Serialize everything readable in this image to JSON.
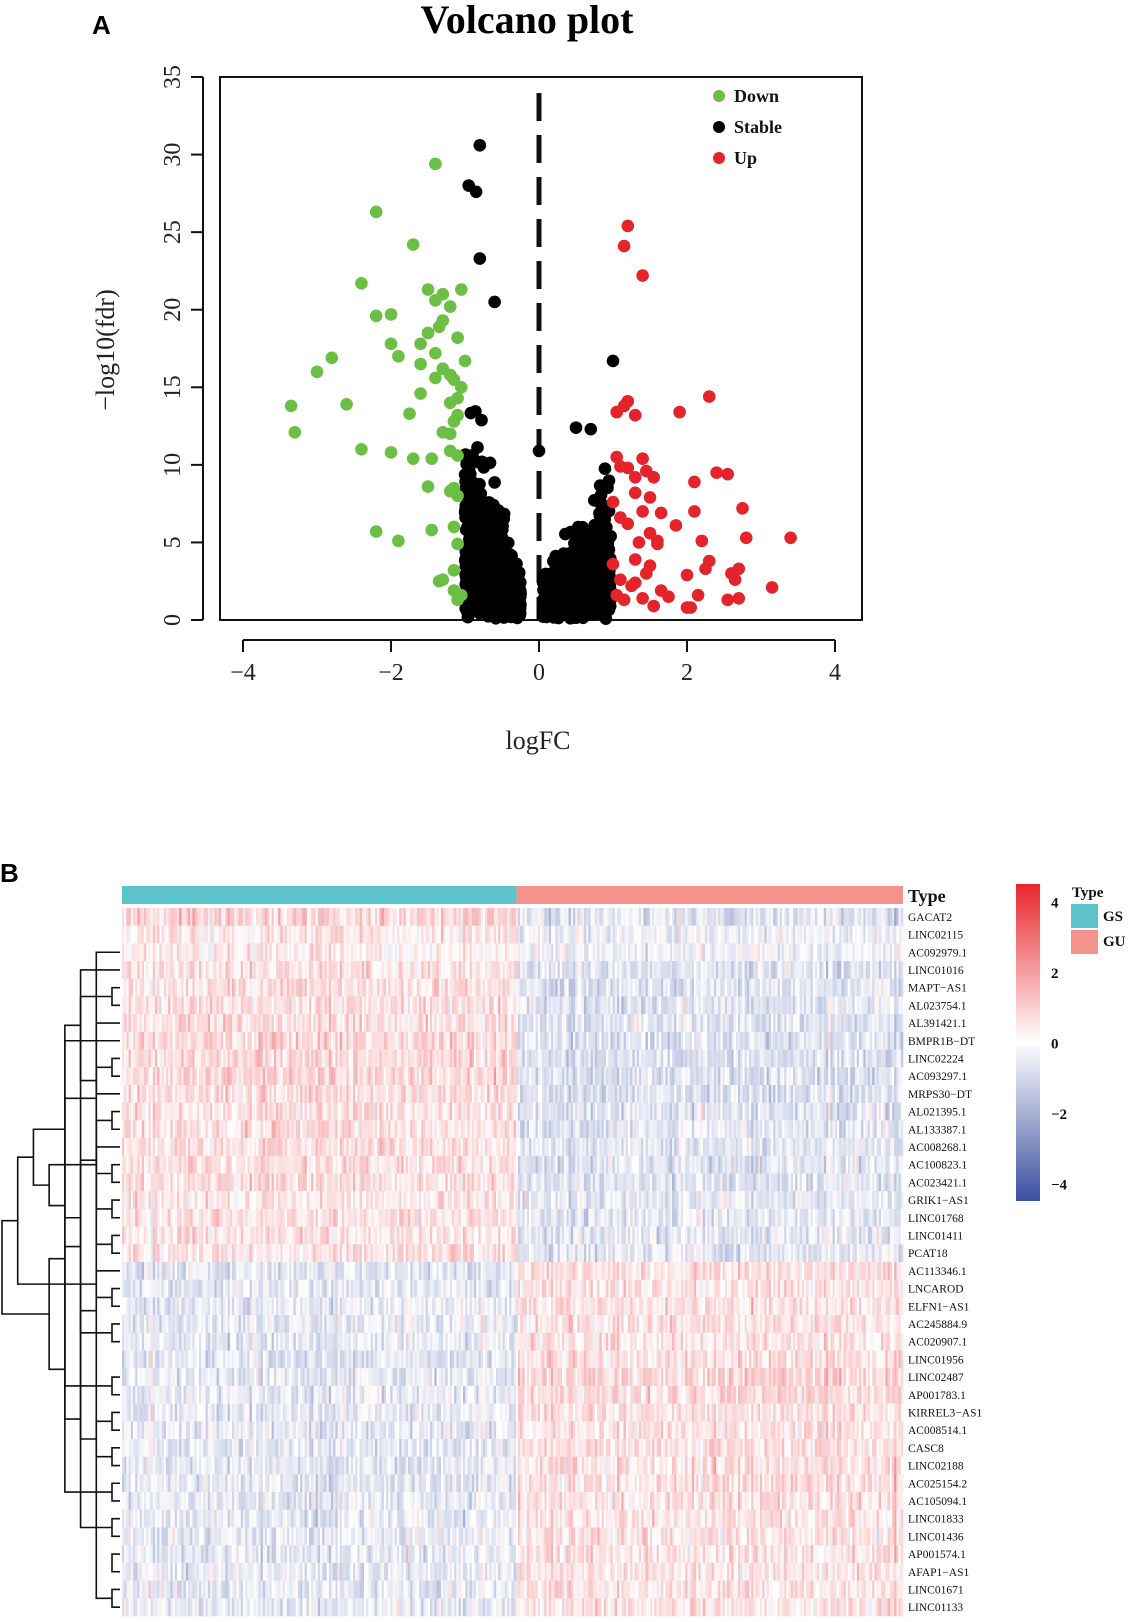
{
  "chart_data": [
    {
      "type": "scatter",
      "panel": "A",
      "title": "Volcano plot",
      "xlabel": "logFC",
      "ylabel": "−log10(fdr)",
      "xlim": [
        -4,
        4
      ],
      "ylim": [
        0,
        35
      ],
      "xticks": [
        "−4",
        "−2",
        "0",
        "2",
        "4"
      ],
      "yticks": [
        "0",
        "5",
        "10",
        "15",
        "20",
        "25",
        "30",
        "35"
      ],
      "threshold_x": 0,
      "legend": [
        "Down",
        "Stable",
        "Up"
      ],
      "colors": {
        "Down": "#6cbf45",
        "Stable": "#000000",
        "Up": "#e4232a"
      },
      "series": [
        {
          "name": "Down",
          "points": [
            [
              -1.4,
              29.4
            ],
            [
              -2.2,
              26.3
            ],
            [
              -1.7,
              24.2
            ],
            [
              -2.4,
              21.7
            ],
            [
              -1.5,
              21.3
            ],
            [
              -1.05,
              21.3
            ],
            [
              -1.3,
              21
            ],
            [
              -1.4,
              20.6
            ],
            [
              -1.2,
              20.2
            ],
            [
              -2.2,
              19.6
            ],
            [
              -2.0,
              19.7
            ],
            [
              -1.3,
              19.3
            ],
            [
              -1.5,
              18.5
            ],
            [
              -1.35,
              18.9
            ],
            [
              -1.1,
              18.2
            ],
            [
              -2.0,
              17.8
            ],
            [
              -1.6,
              17.8
            ],
            [
              -1.4,
              17.2
            ],
            [
              -1.9,
              17.0
            ],
            [
              -2.8,
              16.9
            ],
            [
              -1.0,
              16.7
            ],
            [
              -1.6,
              16.5
            ],
            [
              -3.0,
              16.0
            ],
            [
              -1.3,
              16.2
            ],
            [
              -1.2,
              15.8
            ],
            [
              -1.4,
              15.6
            ],
            [
              -1.15,
              15.5
            ],
            [
              -1.05,
              15.0
            ],
            [
              -1.6,
              14.6
            ],
            [
              -1.1,
              14.3
            ],
            [
              -1.2,
              14.0
            ],
            [
              -2.6,
              13.9
            ],
            [
              -3.35,
              13.8
            ],
            [
              -1.75,
              13.3
            ],
            [
              -1.1,
              13.2
            ],
            [
              -1.15,
              12.8
            ],
            [
              -3.3,
              12.1
            ],
            [
              -1.3,
              12.1
            ],
            [
              -1.2,
              12.0
            ],
            [
              -2.4,
              11.0
            ],
            [
              -1.2,
              10.9
            ],
            [
              -2.0,
              10.8
            ],
            [
              -1.1,
              10.6
            ],
            [
              -1.7,
              10.4
            ],
            [
              -1.45,
              10.4
            ],
            [
              -1.5,
              8.6
            ],
            [
              -1.15,
              8.5
            ],
            [
              -1.2,
              8.3
            ],
            [
              -1.1,
              8.0
            ],
            [
              -1.15,
              6.0
            ],
            [
              -1.45,
              5.8
            ],
            [
              -2.2,
              5.7
            ],
            [
              -1.9,
              5.1
            ],
            [
              -1.1,
              4.9
            ],
            [
              -1.15,
              3.2
            ],
            [
              -1.3,
              2.6
            ],
            [
              -1.35,
              2.5
            ],
            [
              -1.15,
              1.9
            ],
            [
              -1.05,
              1.6
            ],
            [
              -1.1,
              1.3
            ]
          ]
        },
        {
          "name": "Stable",
          "count": 1400,
          "x_range": [
            -1.0,
            1.0
          ],
          "points": [
            [
              -0.8,
              30.6
            ],
            [
              -0.95,
              28.0
            ],
            [
              -0.85,
              27.6
            ],
            [
              -0.8,
              23.3
            ],
            [
              -0.6,
              20.5
            ],
            [
              0.0,
              10.9
            ],
            [
              1.0,
              16.7
            ],
            [
              0.7,
              12.3
            ],
            [
              0.5,
              12.4
            ],
            [
              -0.9,
              0.7
            ],
            [
              0.1,
              0.2
            ]
          ]
        },
        {
          "name": "Up",
          "points": [
            [
              1.2,
              25.4
            ],
            [
              1.15,
              24.1
            ],
            [
              1.4,
              22.2
            ],
            [
              2.3,
              14.4
            ],
            [
              1.2,
              14.1
            ],
            [
              1.15,
              13.8
            ],
            [
              1.05,
              13.4
            ],
            [
              1.9,
              13.4
            ],
            [
              1.3,
              13.2
            ],
            [
              1.05,
              10.5
            ],
            [
              1.4,
              10.4
            ],
            [
              1.1,
              9.9
            ],
            [
              1.2,
              9.8
            ],
            [
              1.45,
              9.6
            ],
            [
              2.4,
              9.5
            ],
            [
              2.55,
              9.4
            ],
            [
              1.3,
              9.2
            ],
            [
              2.1,
              8.9
            ],
            [
              1.55,
              9.2
            ],
            [
              1.3,
              8.2
            ],
            [
              1.5,
              7.9
            ],
            [
              1.0,
              7.6
            ],
            [
              2.75,
              7.2
            ],
            [
              1.4,
              7.0
            ],
            [
              2.1,
              7.0
            ],
            [
              1.65,
              6.9
            ],
            [
              1.1,
              6.6
            ],
            [
              1.2,
              6.2
            ],
            [
              1.85,
              6.1
            ],
            [
              1.5,
              5.6
            ],
            [
              1.6,
              5.1
            ],
            [
              2.8,
              5.3
            ],
            [
              3.4,
              5.3
            ],
            [
              2.2,
              5.1
            ],
            [
              1.35,
              5.0
            ],
            [
              1.6,
              4.9
            ],
            [
              1.3,
              3.9
            ],
            [
              1.0,
              3.6
            ],
            [
              1.5,
              3.5
            ],
            [
              2.3,
              3.8
            ],
            [
              2.25,
              3.3
            ],
            [
              1.45,
              3.0
            ],
            [
              2.0,
              2.9
            ],
            [
              2.7,
              3.3
            ],
            [
              2.6,
              3.0
            ],
            [
              2.65,
              2.6
            ],
            [
              1.1,
              2.6
            ],
            [
              1.3,
              2.4
            ],
            [
              1.25,
              2.2
            ],
            [
              3.15,
              2.1
            ],
            [
              1.05,
              1.6
            ],
            [
              1.65,
              1.9
            ],
            [
              2.15,
              1.6
            ],
            [
              2.7,
              1.4
            ],
            [
              1.4,
              1.4
            ],
            [
              1.15,
              1.3
            ],
            [
              1.75,
              1.5
            ],
            [
              2.55,
              1.3
            ],
            [
              2.0,
              0.8
            ],
            [
              1.55,
              0.9
            ],
            [
              2.05,
              0.8
            ]
          ]
        }
      ]
    },
    {
      "type": "heatmap",
      "panel": "B",
      "rows": [
        "GACAT2",
        "LINC02115",
        "AC092979.1",
        "LINC01016",
        "MAPT−AS1",
        "AL023754.1",
        "AL391421.1",
        "BMPR1B−DT",
        "LINC02224",
        "AC093297.1",
        "MRPS30−DT",
        "AL021395.1",
        "AL133387.1",
        "AC008268.1",
        "AC100823.1",
        "AC023421.1",
        "GRIK1−AS1",
        "LINC01768",
        "LINC01411",
        "PCAT18",
        "AC113346.1",
        "LNCAROD",
        "ELFN1−AS1",
        "AC245884.9",
        "AC020907.1",
        "LINC01956",
        "LINC02487",
        "AP001783.1",
        "KIRREL3−AS1",
        "AC008514.1",
        "CASC8",
        "LINC02188",
        "AC025154.2",
        "AC105094.1",
        "LINC01833",
        "LINC01436",
        "AP001574.1",
        "AFAP1−AS1",
        "LINC01671",
        "LINC01133"
      ],
      "row_group_mean_z": {
        "GS": [
          0.9,
          0.5,
          0.3,
          0.6,
          0.6,
          0.6,
          0.6,
          0.8,
          0.7,
          0.8,
          0.7,
          0.6,
          0.6,
          0.6,
          0.6,
          0.6,
          0.5,
          0.5,
          0.5,
          0.5,
          -0.6,
          -0.5,
          -0.5,
          -0.5,
          -0.5,
          -0.6,
          -0.5,
          -0.5,
          -0.5,
          -0.5,
          -0.6,
          -0.5,
          -0.5,
          -0.5,
          -0.5,
          -0.5,
          -0.5,
          -0.5,
          -0.5,
          -0.5
        ],
        "GU": [
          -0.6,
          -0.4,
          -0.2,
          -0.7,
          -0.6,
          -0.6,
          -0.6,
          -0.7,
          -0.7,
          -0.7,
          -0.7,
          -0.6,
          -0.6,
          -0.6,
          -0.6,
          -0.6,
          -0.5,
          -0.5,
          -0.5,
          -0.5,
          0.6,
          0.5,
          0.5,
          0.5,
          0.5,
          0.6,
          0.8,
          0.7,
          0.6,
          0.5,
          0.6,
          0.6,
          0.6,
          0.6,
          0.5,
          0.5,
          0.5,
          0.5,
          0.5,
          0.5
        ]
      },
      "annotation_title": "Type",
      "groups": [
        {
          "name": "GS",
          "color": "#5ac3cb"
        },
        {
          "name": "GU",
          "color": "#f4928b"
        }
      ],
      "group_fraction": {
        "GS": 0.505,
        "GU": 0.495
      },
      "color_scale": {
        "min": -4.5,
        "max": 4.5,
        "low": "#3a4fa0",
        "mid": "#ffffff",
        "high": "#e8262c",
        "ticks": [
          "4",
          "2",
          "0",
          "−2",
          "−4"
        ],
        "tick_values": [
          4,
          2,
          0,
          -2,
          -4
        ]
      },
      "row_dendrogram": [
        [
          19,
          18
        ],
        [
          41,
          0
        ],
        [
          42,
          1
        ],
        [
          11,
          12
        ],
        [
          14,
          15
        ],
        [
          8,
          9
        ],
        [
          4,
          5
        ],
        [
          36,
          37
        ],
        [
          38,
          39
        ],
        [
          28,
          29
        ],
        [
          30,
          31
        ],
        [
          23,
          24
        ],
        [
          26,
          27
        ],
        [
          25,
          53
        ],
        [
          34,
          35
        ],
        [
          48,
          6
        ],
        [
          45,
          10
        ],
        [
          57,
          47
        ],
        [
          16,
          17
        ],
        [
          49,
          50
        ],
        [
          13,
          44
        ],
        [
          21,
          22
        ],
        [
          32,
          33
        ],
        [
          3,
          56
        ],
        [
          59,
          46
        ],
        [
          54,
          55
        ],
        [
          20,
          61
        ],
        [
          58,
          43
        ],
        [
          52,
          63
        ],
        [
          60,
          51
        ],
        [
          7,
          64
        ],
        [
          40,
          2
        ],
        [
          68,
          67
        ],
        [
          69,
          62
        ],
        [
          71,
          65
        ],
        [
          72,
          70
        ],
        [
          73,
          74
        ],
        [
          75,
          66
        ],
        [
          77,
          76
        ]
      ]
    }
  ]
}
